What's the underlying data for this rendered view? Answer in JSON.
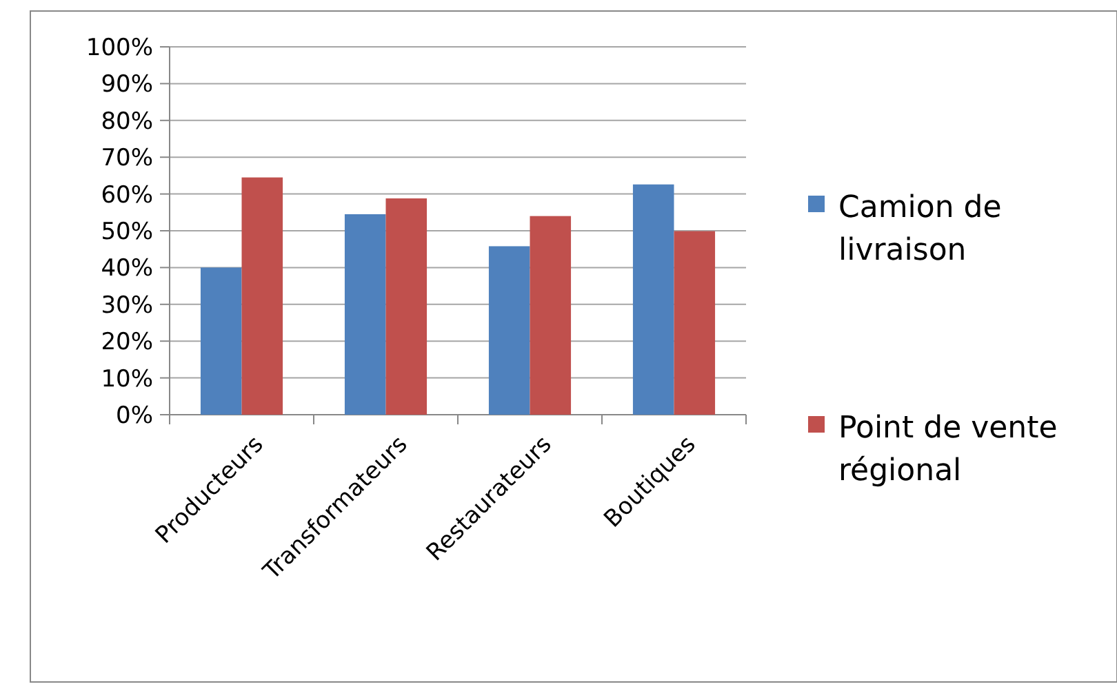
{
  "chart_data": {
    "type": "bar",
    "categories": [
      "Producteurs",
      "Transformateurs",
      "Restaurateurs",
      "Boutiques"
    ],
    "series": [
      {
        "name": "Camion de livraison",
        "color": "#4f81bd",
        "values": [
          40,
          54.5,
          45.8,
          62.6
        ]
      },
      {
        "name": "Point de vente régional",
        "color": "#c0504d",
        "values": [
          64.5,
          58.8,
          54,
          49.9
        ]
      }
    ],
    "ylim": [
      0,
      100
    ],
    "yticks": [
      {
        "value": 0,
        "label": "0%"
      },
      {
        "value": 10,
        "label": "10%"
      },
      {
        "value": 20,
        "label": "20%"
      },
      {
        "value": 30,
        "label": "30%"
      },
      {
        "value": 40,
        "label": "40%"
      },
      {
        "value": 50,
        "label": "50%"
      },
      {
        "value": 60,
        "label": "60%"
      },
      {
        "value": 70,
        "label": "70%"
      },
      {
        "value": 80,
        "label": "80%"
      },
      {
        "value": 90,
        "label": "90%"
      },
      {
        "value": 100,
        "label": "100%"
      }
    ],
    "grid": "y",
    "legend": "right"
  }
}
